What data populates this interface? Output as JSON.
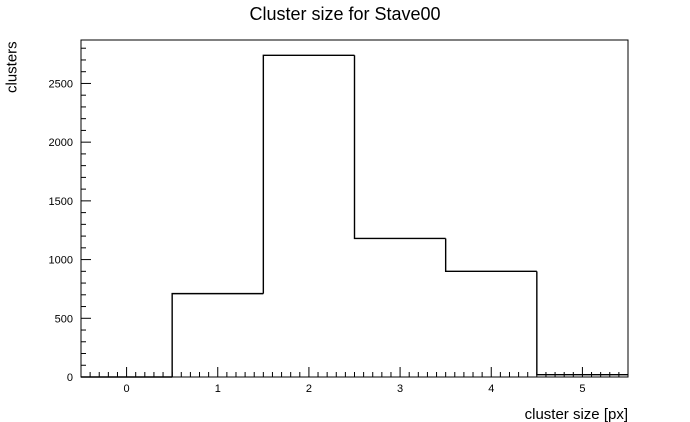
{
  "chart_data": {
    "type": "bar",
    "title": "Cluster size for Stave00",
    "xlabel": "cluster size [px]",
    "ylabel": "clusters",
    "categories": [
      "0",
      "1",
      "2",
      "3",
      "4",
      "5"
    ],
    "bins": [
      {
        "low": -0.5,
        "high": 0.5,
        "value": 0
      },
      {
        "low": 0.5,
        "high": 1.5,
        "value": 710
      },
      {
        "low": 1.5,
        "high": 2.5,
        "value": 2740
      },
      {
        "low": 2.5,
        "high": 3.5,
        "value": 1180
      },
      {
        "low": 3.5,
        "high": 4.5,
        "value": 900
      },
      {
        "low": 4.5,
        "high": 5.5,
        "value": 20
      }
    ],
    "values": [
      0,
      710,
      2740,
      1180,
      900,
      20
    ],
    "xlim": [
      -0.5,
      5.5
    ],
    "ylim": [
      0,
      2870
    ],
    "x_ticks": [
      0,
      1,
      2,
      3,
      4,
      5
    ],
    "y_ticks": [
      0,
      500,
      1000,
      1500,
      2000,
      2500
    ],
    "grid": false,
    "legend": "none",
    "line_color": "#000000"
  }
}
